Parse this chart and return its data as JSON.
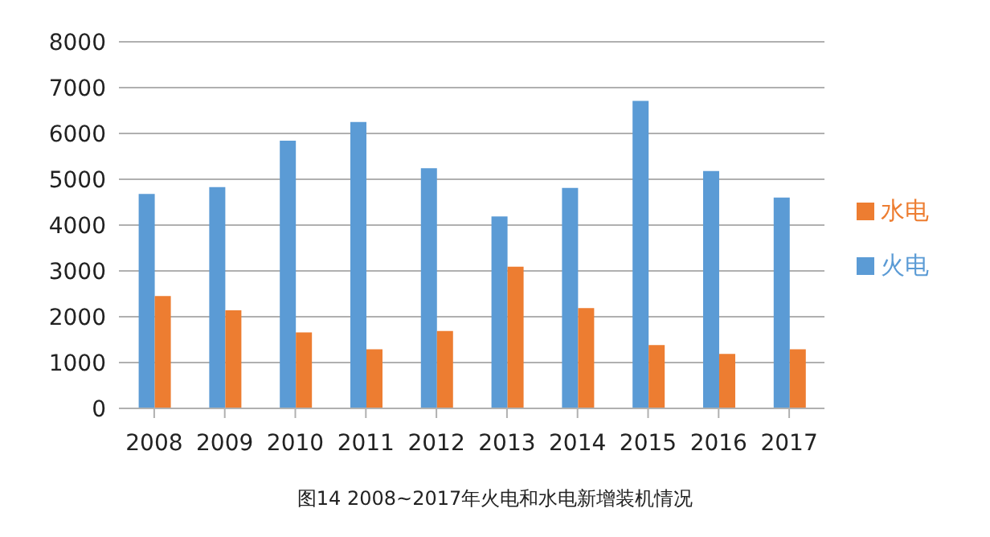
{
  "chart_data": {
    "type": "bar",
    "title": "图14 2008~2017年火电和水电新增装机情况",
    "categories": [
      "2008",
      "2009",
      "2010",
      "2011",
      "2012",
      "2013",
      "2014",
      "2015",
      "2016",
      "2017"
    ],
    "series": [
      {
        "name": "火电",
        "color": "#5b9bd5",
        "values": [
          4680,
          4830,
          5840,
          6250,
          5240,
          4190,
          4810,
          6710,
          5180,
          4600
        ]
      },
      {
        "name": "水电",
        "color": "#ed7d31",
        "values": [
          2450,
          2140,
          1660,
          1290,
          1690,
          3090,
          2190,
          1380,
          1190,
          1290
        ]
      }
    ],
    "ylim": [
      0,
      8000
    ],
    "yticks": [
      0,
      1000,
      2000,
      3000,
      4000,
      5000,
      6000,
      7000,
      8000
    ],
    "grid": "y",
    "legend": "right"
  }
}
